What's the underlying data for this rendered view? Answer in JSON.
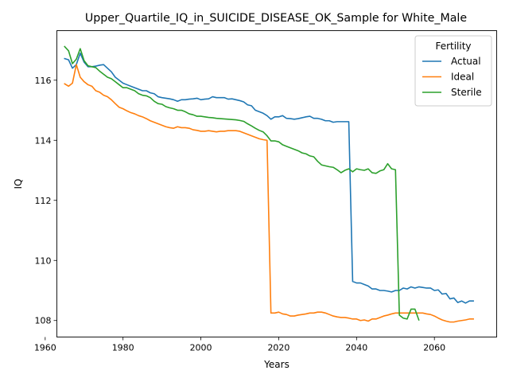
{
  "chart_data": {
    "type": "line",
    "title": "Upper_Quartile_IQ_in_SUICIDE_DISEASE_OK_Sample for White_Male",
    "xlabel": "Years",
    "ylabel": "IQ",
    "xlim": [
      1963,
      2076
    ],
    "ylim": [
      107.45,
      117.65
    ],
    "x_ticks": [
      1960,
      1980,
      2000,
      2020,
      2040,
      2060
    ],
    "y_ticks": [
      108,
      110,
      112,
      114,
      116
    ],
    "grid": false,
    "legend": {
      "title": "Fertility",
      "placement": "top-right"
    },
    "series": [
      {
        "name": "Actual",
        "color": "#1f77b4",
        "x": [
          1965,
          1966,
          1967,
          1968,
          1969,
          1970,
          1971,
          1972,
          1973,
          1974,
          1975,
          1976,
          1977,
          1978,
          1979,
          1980,
          1981,
          1982,
          1983,
          1984,
          1985,
          1986,
          1987,
          1988,
          1989,
          1990,
          1991,
          1992,
          1993,
          1994,
          1995,
          1996,
          1997,
          1998,
          1999,
          2000,
          2001,
          2002,
          2003,
          2004,
          2005,
          2006,
          2007,
          2008,
          2009,
          2010,
          2011,
          2012,
          2013,
          2014,
          2015,
          2016,
          2017,
          2018,
          2019,
          2020,
          2021,
          2022,
          2023,
          2024,
          2025,
          2026,
          2027,
          2028,
          2029,
          2030,
          2031,
          2032,
          2033,
          2034,
          2035,
          2036,
          2037,
          2038,
          2039,
          2040,
          2041,
          2042,
          2043,
          2044,
          2045,
          2046,
          2047,
          2048,
          2049,
          2050,
          2051,
          2052,
          2053,
          2054,
          2055,
          2056,
          2057,
          2058,
          2059,
          2060,
          2061,
          2062,
          2063,
          2064,
          2065,
          2066,
          2067,
          2068,
          2069,
          2070
        ],
        "y": [
          116.72,
          116.68,
          116.4,
          116.52,
          116.9,
          116.6,
          116.45,
          116.45,
          116.47,
          116.5,
          116.52,
          116.4,
          116.28,
          116.1,
          116.0,
          115.9,
          115.85,
          115.8,
          115.75,
          115.7,
          115.65,
          115.65,
          115.58,
          115.55,
          115.45,
          115.42,
          115.4,
          115.38,
          115.35,
          115.3,
          115.35,
          115.35,
          115.37,
          115.38,
          115.4,
          115.35,
          115.37,
          115.38,
          115.45,
          115.42,
          115.42,
          115.42,
          115.37,
          115.38,
          115.35,
          115.32,
          115.28,
          115.18,
          115.15,
          115.0,
          114.95,
          114.9,
          114.82,
          114.7,
          114.78,
          114.78,
          114.82,
          114.73,
          114.72,
          114.7,
          114.72,
          114.75,
          114.78,
          114.8,
          114.73,
          114.73,
          114.7,
          114.65,
          114.65,
          114.6,
          114.62,
          114.62,
          114.62,
          114.62,
          109.3,
          109.25,
          109.25,
          109.2,
          109.15,
          109.05,
          109.05,
          109.0,
          109.0,
          108.98,
          108.95,
          109.0,
          109.0,
          109.08,
          109.05,
          109.12,
          109.08,
          109.12,
          109.1,
          109.08,
          109.08,
          109.0,
          109.02,
          108.88,
          108.9,
          108.72,
          108.75,
          108.6,
          108.65,
          108.58,
          108.65,
          108.65
        ]
      },
      {
        "name": "Ideal",
        "color": "#ff7f0e",
        "x": [
          1965,
          1966,
          1967,
          1968,
          1969,
          1970,
          1971,
          1972,
          1973,
          1974,
          1975,
          1976,
          1977,
          1978,
          1979,
          1980,
          1981,
          1982,
          1983,
          1984,
          1985,
          1986,
          1987,
          1988,
          1989,
          1990,
          1991,
          1992,
          1993,
          1994,
          1995,
          1996,
          1997,
          1998,
          1999,
          2000,
          2001,
          2002,
          2003,
          2004,
          2005,
          2006,
          2007,
          2008,
          2009,
          2010,
          2011,
          2012,
          2013,
          2014,
          2015,
          2016,
          2017,
          2018,
          2019,
          2020,
          2021,
          2022,
          2023,
          2024,
          2025,
          2026,
          2027,
          2028,
          2029,
          2030,
          2031,
          2032,
          2033,
          2034,
          2035,
          2036,
          2037,
          2038,
          2039,
          2040,
          2041,
          2042,
          2043,
          2044,
          2045,
          2046,
          2047,
          2048,
          2049,
          2050,
          2051,
          2052,
          2053,
          2054,
          2055,
          2056,
          2057,
          2058,
          2059,
          2060,
          2061,
          2062,
          2063,
          2064,
          2065,
          2066,
          2067,
          2068,
          2069,
          2070
        ],
        "y": [
          115.88,
          115.8,
          115.9,
          116.52,
          116.1,
          115.95,
          115.85,
          115.8,
          115.65,
          115.6,
          115.5,
          115.45,
          115.35,
          115.22,
          115.1,
          115.05,
          114.98,
          114.92,
          114.88,
          114.82,
          114.78,
          114.72,
          114.65,
          114.6,
          114.55,
          114.5,
          114.45,
          114.42,
          114.4,
          114.45,
          114.42,
          114.42,
          114.4,
          114.35,
          114.33,
          114.3,
          114.3,
          114.32,
          114.3,
          114.28,
          114.3,
          114.3,
          114.32,
          114.32,
          114.32,
          114.3,
          114.25,
          114.2,
          114.15,
          114.1,
          114.05,
          114.02,
          114.0,
          108.25,
          108.25,
          108.28,
          108.22,
          108.2,
          108.15,
          108.15,
          108.18,
          108.2,
          108.22,
          108.25,
          108.25,
          108.28,
          108.28,
          108.25,
          108.2,
          108.15,
          108.12,
          108.1,
          108.1,
          108.08,
          108.05,
          108.05,
          108.0,
          108.02,
          107.98,
          108.05,
          108.05,
          108.1,
          108.15,
          108.18,
          108.22,
          108.25,
          108.25,
          108.25,
          108.25,
          108.25,
          108.25,
          108.25,
          108.25,
          108.22,
          108.2,
          108.15,
          108.08,
          108.02,
          107.98,
          107.95,
          107.95,
          107.98,
          108.0,
          108.02,
          108.05,
          108.05
        ]
      },
      {
        "name": "Sterile",
        "color": "#2ca02c",
        "x": [
          1965,
          1966,
          1967,
          1968,
          1969,
          1970,
          1971,
          1972,
          1973,
          1974,
          1975,
          1976,
          1977,
          1978,
          1979,
          1980,
          1981,
          1982,
          1983,
          1984,
          1985,
          1986,
          1987,
          1988,
          1989,
          1990,
          1991,
          1992,
          1993,
          1994,
          1995,
          1996,
          1997,
          1998,
          1999,
          2000,
          2001,
          2002,
          2003,
          2004,
          2005,
          2006,
          2007,
          2008,
          2009,
          2010,
          2011,
          2012,
          2013,
          2014,
          2015,
          2016,
          2017,
          2018,
          2019,
          2020,
          2021,
          2022,
          2023,
          2024,
          2025,
          2026,
          2027,
          2028,
          2029,
          2030,
          2031,
          2032,
          2033,
          2034,
          2035,
          2036,
          2037,
          2038,
          2039,
          2040,
          2041,
          2042,
          2043,
          2044,
          2045,
          2046,
          2047,
          2048,
          2049,
          2050,
          2051,
          2052,
          2053,
          2054,
          2055,
          2056
        ],
        "y": [
          117.12,
          116.98,
          116.55,
          116.7,
          117.05,
          116.65,
          116.48,
          116.45,
          116.42,
          116.3,
          116.2,
          116.1,
          116.05,
          115.95,
          115.85,
          115.75,
          115.75,
          115.7,
          115.65,
          115.55,
          115.5,
          115.48,
          115.42,
          115.3,
          115.22,
          115.2,
          115.12,
          115.08,
          115.05,
          115.0,
          115.0,
          114.95,
          114.88,
          114.85,
          114.8,
          114.8,
          114.78,
          114.76,
          114.75,
          114.73,
          114.72,
          114.71,
          114.7,
          114.69,
          114.68,
          114.66,
          114.63,
          114.55,
          114.48,
          114.4,
          114.33,
          114.28,
          114.15,
          113.98,
          113.98,
          113.95,
          113.85,
          113.8,
          113.75,
          113.7,
          113.65,
          113.58,
          113.55,
          113.48,
          113.45,
          113.3,
          113.18,
          113.15,
          113.12,
          113.1,
          113.02,
          112.92,
          113.0,
          113.05,
          112.95,
          113.05,
          113.02,
          113.0,
          113.05,
          112.92,
          112.9,
          112.98,
          113.02,
          113.22,
          113.05,
          113.02,
          108.18,
          108.08,
          108.05,
          108.38,
          108.38,
          108.02
        ]
      }
    ]
  }
}
